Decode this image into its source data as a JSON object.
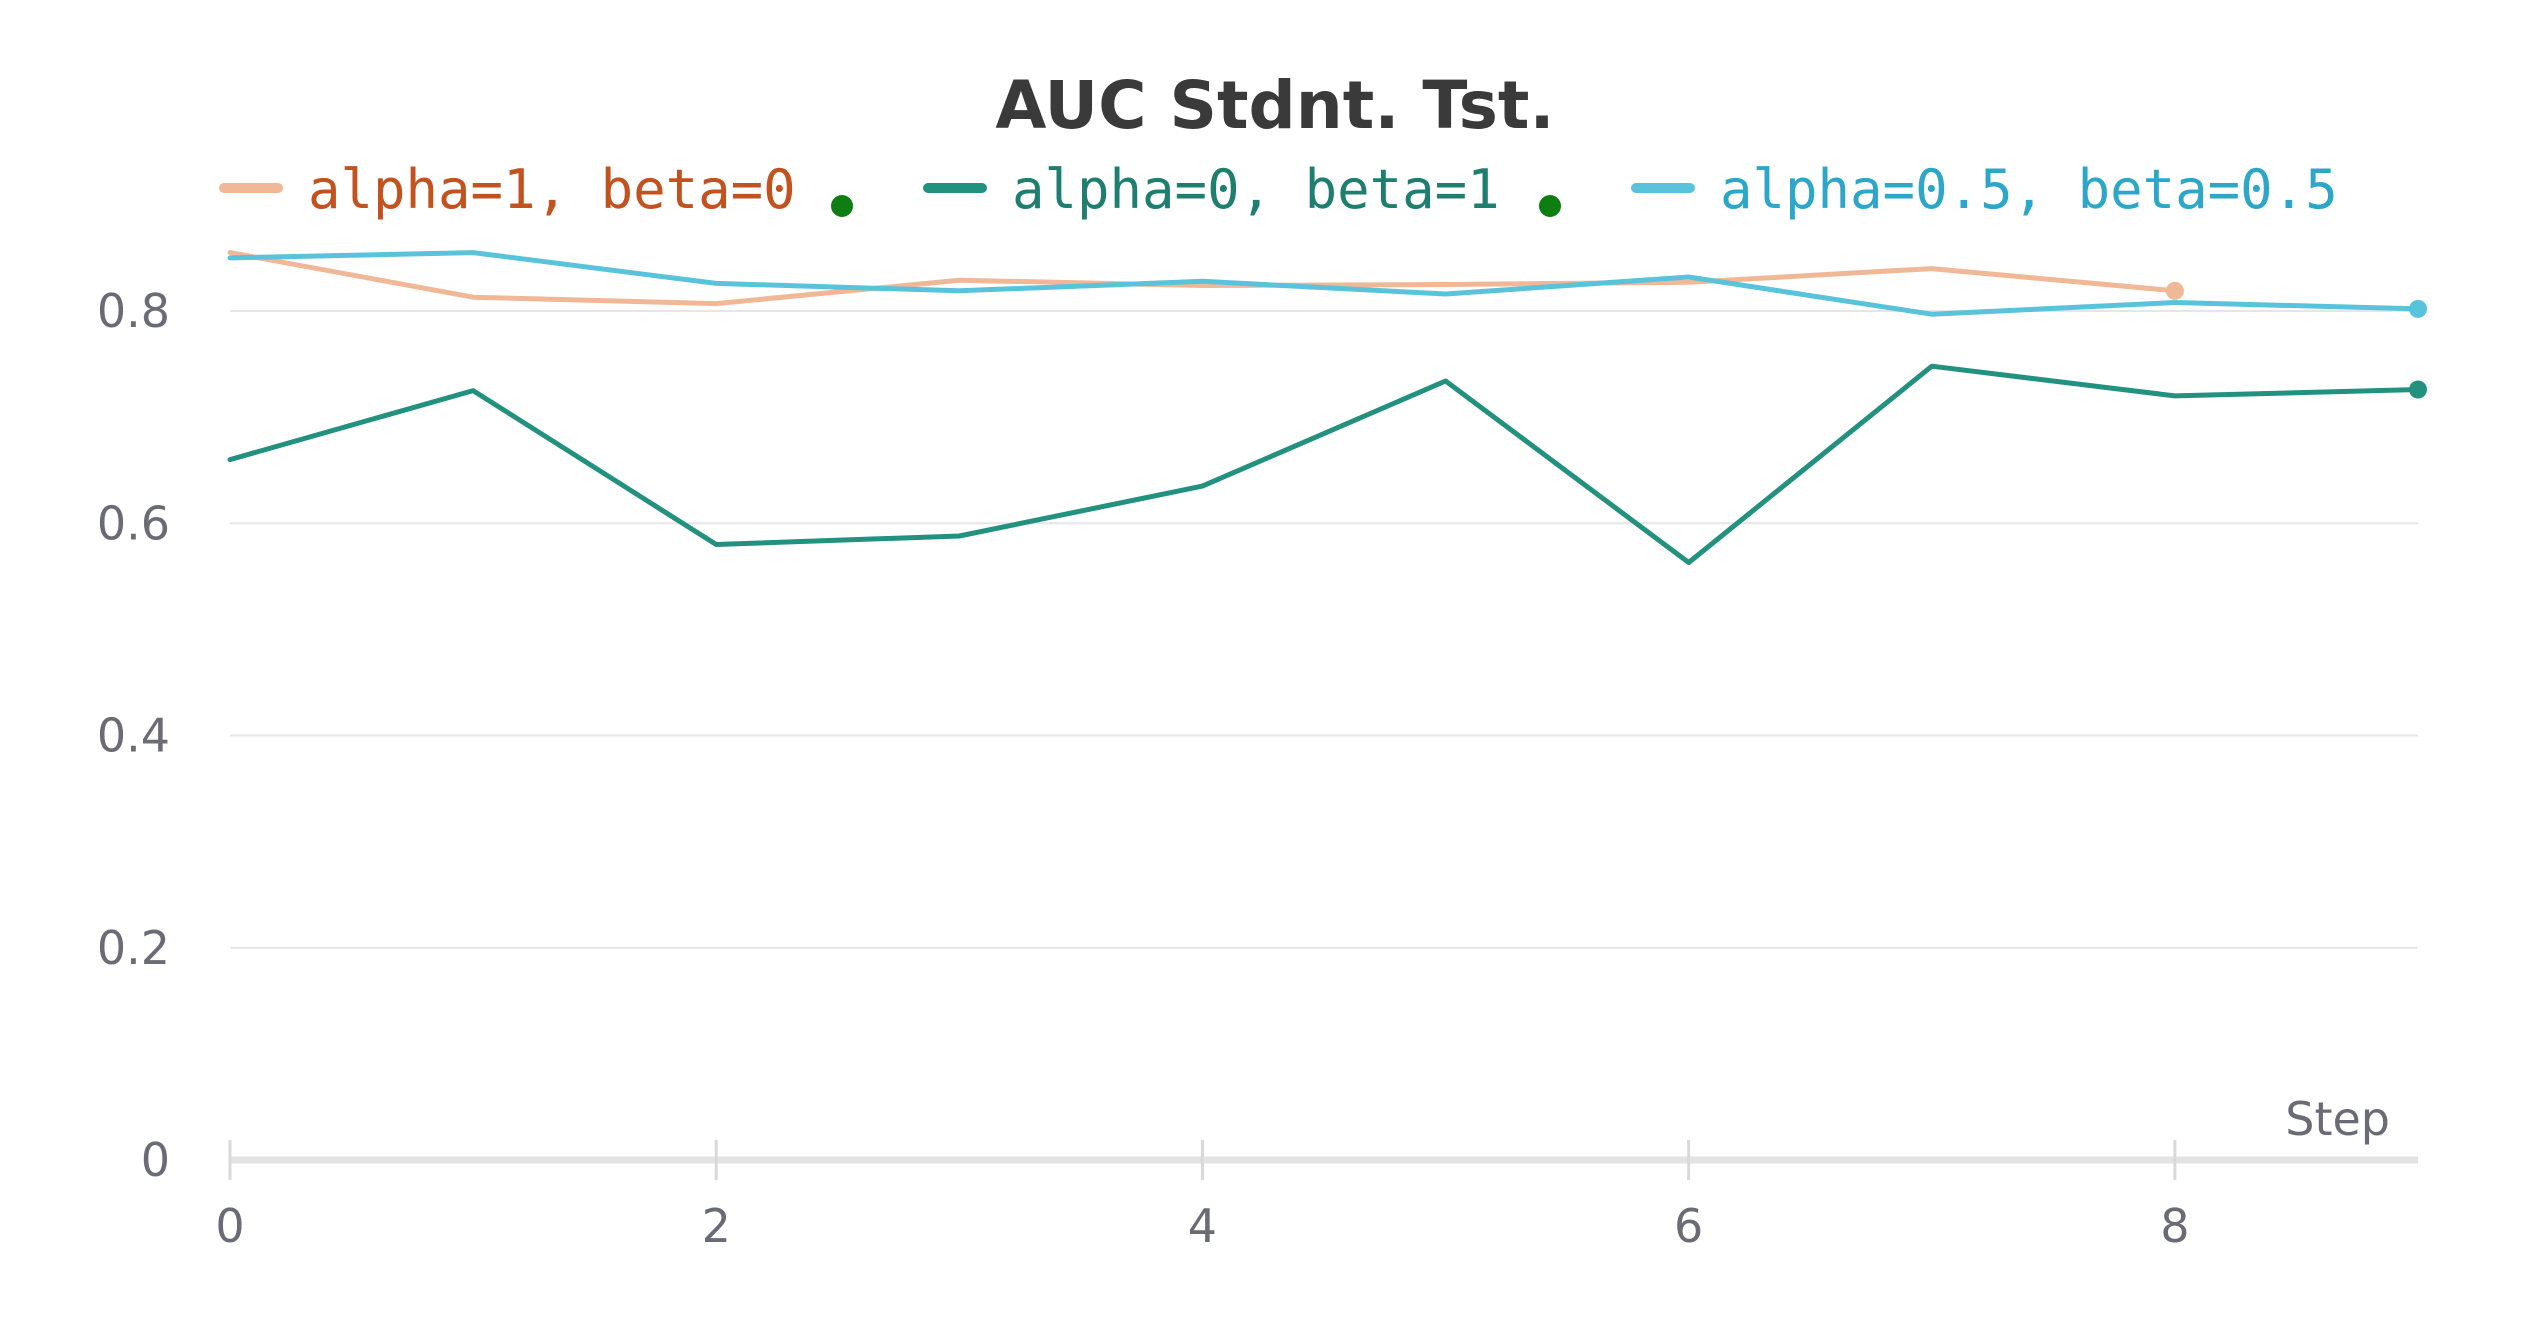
{
  "chart_data": {
    "type": "line",
    "title": "AUC Stdnt. Tst.",
    "xlabel": "Step",
    "ylabel": "",
    "xlim": [
      0,
      9
    ],
    "ylim": [
      0,
      0.9
    ],
    "x_ticks": [
      "0",
      "2",
      "4",
      "6",
      "8"
    ],
    "x_tick_values": [
      0,
      2,
      4,
      6,
      8
    ],
    "y_ticks": [
      "0",
      "0.2",
      "0.4",
      "0.6",
      "0.8"
    ],
    "y_tick_values": [
      0,
      0.2,
      0.4,
      0.6,
      0.8
    ],
    "grid": true,
    "legend_position": "top",
    "series": [
      {
        "name": "alpha=1, beta=0",
        "color": "#f0b896",
        "label_color": "#c2531f",
        "x": [
          0,
          1,
          2,
          3,
          4,
          5,
          6,
          7,
          8
        ],
        "y": [
          0.855,
          0.813,
          0.807,
          0.829,
          0.824,
          0.825,
          0.827,
          0.84,
          0.819
        ]
      },
      {
        "name": "alpha=0, beta=1",
        "color": "#23917f",
        "label_color": "#1f7f6f",
        "x": [
          0,
          1,
          2,
          3,
          4,
          5,
          6,
          7,
          8,
          9
        ],
        "y": [
          0.66,
          0.725,
          0.58,
          0.588,
          0.635,
          0.734,
          0.563,
          0.748,
          0.72,
          0.726
        ]
      },
      {
        "name": "alpha=0.5, beta=0.5",
        "color": "#5ac3dc",
        "label_color": "#2ca7c9",
        "x": [
          0,
          1,
          2,
          3,
          4,
          5,
          6,
          7,
          8,
          9
        ],
        "y": [
          0.85,
          0.855,
          0.826,
          0.819,
          0.828,
          0.816,
          0.832,
          0.797,
          0.808,
          0.802
        ]
      }
    ],
    "legend_dot_color": "#0e7d12"
  }
}
